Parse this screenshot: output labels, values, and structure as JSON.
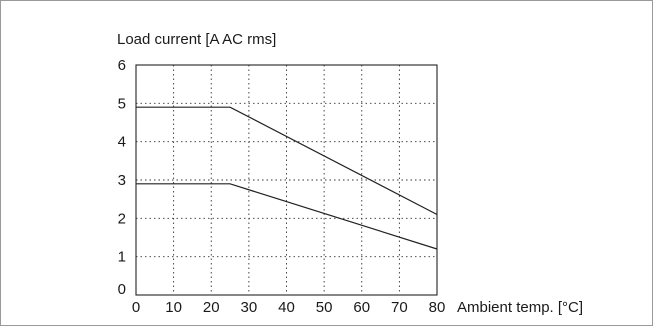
{
  "chart_data": {
    "type": "line",
    "title": "",
    "ylabel": "Load current [A AC rms]",
    "xlabel": "Ambient temp. [°C]",
    "xlim": [
      0,
      80
    ],
    "ylim": [
      0,
      6
    ],
    "xticks": [
      0,
      10,
      20,
      30,
      40,
      50,
      60,
      70,
      80
    ],
    "yticks": [
      0,
      1,
      2,
      3,
      4,
      5,
      6
    ],
    "grid": true,
    "series": [
      {
        "points": [
          [
            0,
            4.9
          ],
          [
            25,
            4.9
          ],
          [
            80,
            2.1
          ]
        ]
      },
      {
        "points": [
          [
            0,
            2.9
          ],
          [
            25,
            2.9
          ],
          [
            80,
            1.2
          ]
        ]
      }
    ]
  }
}
